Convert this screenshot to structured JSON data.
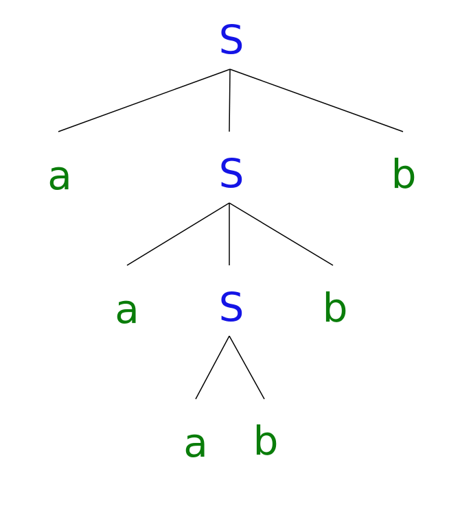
{
  "colors": {
    "nonterminal": "#1414e6",
    "terminal": "#0a7d0a",
    "edge": "#000000"
  },
  "tree": {
    "root": {
      "label": "S"
    },
    "level1": {
      "left": "a",
      "middle": "S",
      "right": "b"
    },
    "level2": {
      "left": "a",
      "middle": "S",
      "right": "b"
    },
    "level3": {
      "left": "a",
      "right": "b"
    }
  }
}
